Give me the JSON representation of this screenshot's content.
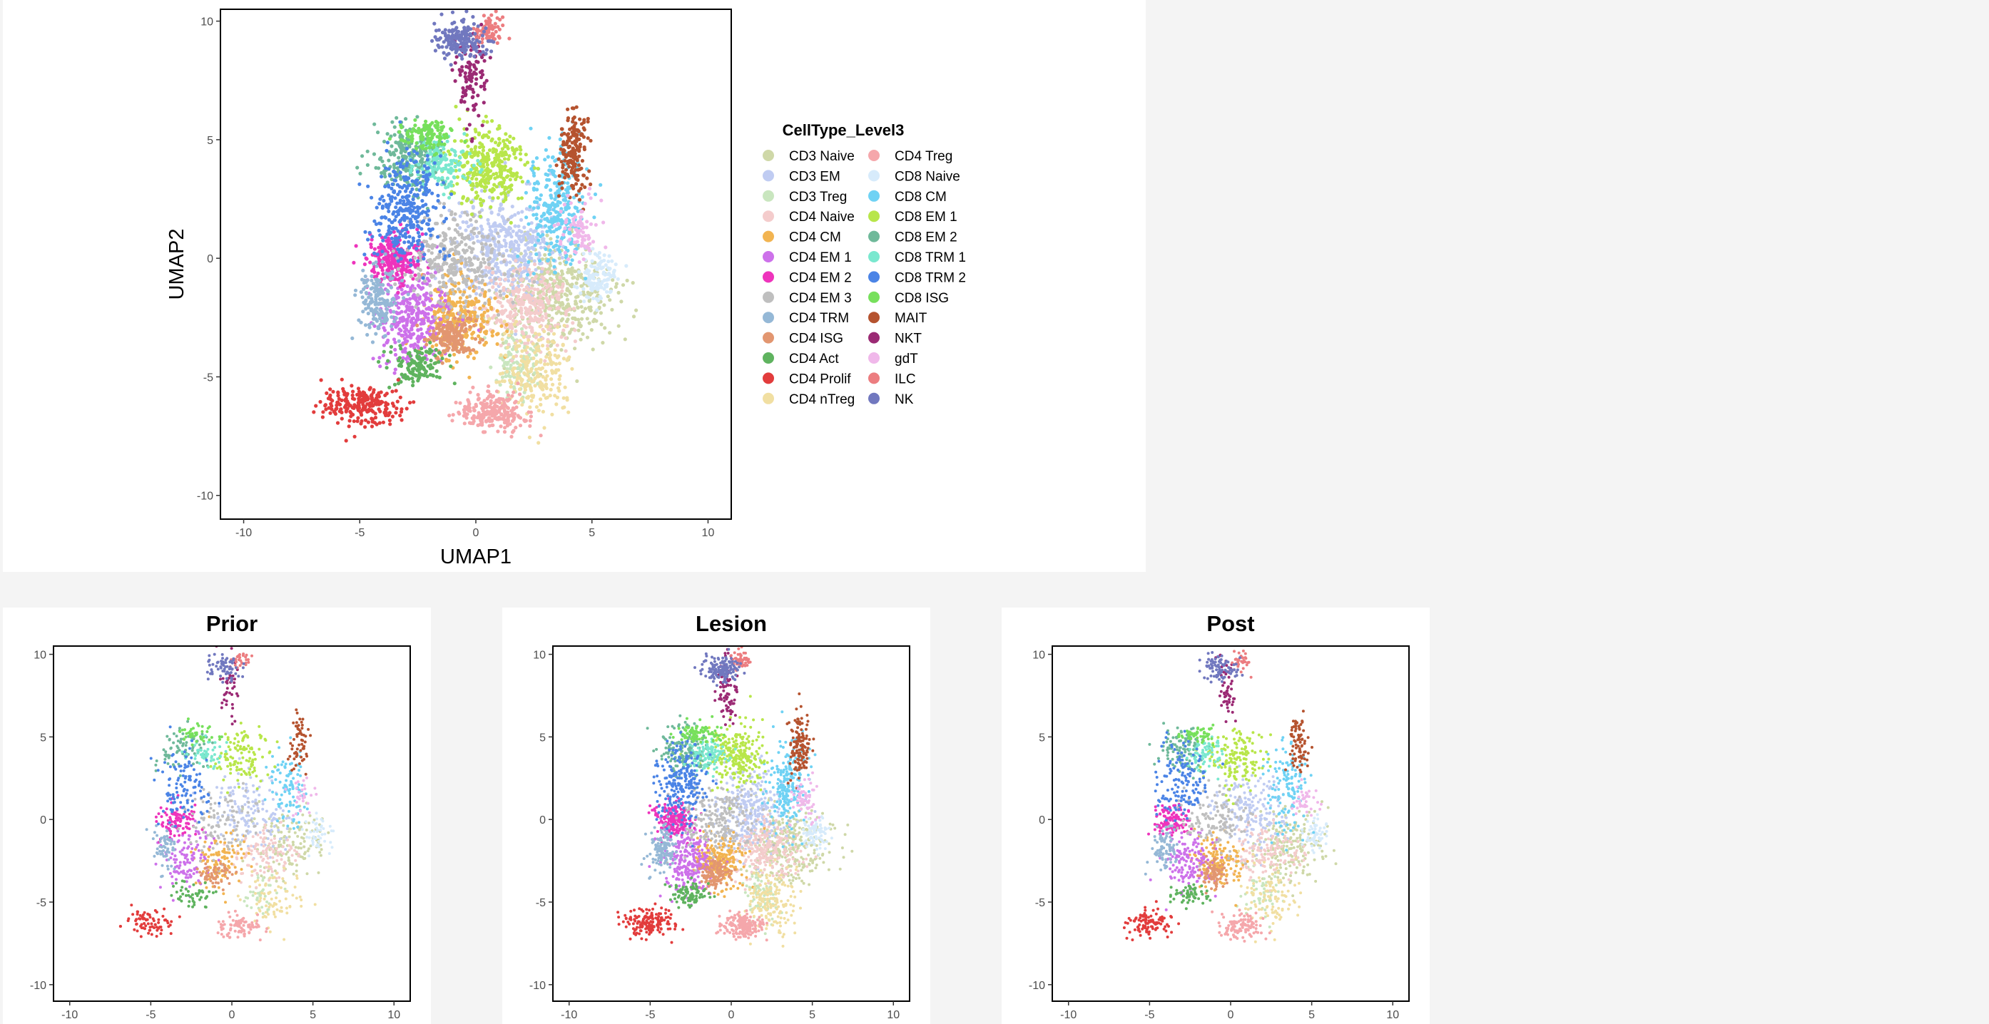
{
  "chart_data": [
    {
      "type": "scatter",
      "title": "",
      "xlabel": "UMAP1",
      "ylabel": "UMAP2",
      "xlim": [
        -11,
        11
      ],
      "ylim": [
        -11,
        10.5
      ],
      "xticks": [
        -10,
        -5,
        0,
        5,
        10
      ],
      "yticks": [
        -10,
        -5,
        0,
        5,
        10
      ],
      "grid": false,
      "legend_title": "CellType_Level3",
      "legend_position": "right",
      "density": 1.0,
      "series": [
        {
          "name": "CD3 Naive",
          "color": "#cfd8a8",
          "cx": 3.5,
          "cy": -1.5,
          "sx": 1.2,
          "sy": 1.1,
          "n": 420
        },
        {
          "name": "CD3 EM",
          "color": "#c0ccf2",
          "cx": 1.2,
          "cy": 0.5,
          "sx": 1.1,
          "sy": 1.2,
          "n": 420
        },
        {
          "name": "CD3 Treg",
          "color": "#c9e6bf",
          "cx": 1.8,
          "cy": -4.5,
          "sx": 0.5,
          "sy": 0.8,
          "n": 120
        },
        {
          "name": "CD4 Naive",
          "color": "#f4cccc",
          "cx": 2.2,
          "cy": -2.0,
          "sx": 1.0,
          "sy": 0.8,
          "n": 300
        },
        {
          "name": "CD4 CM",
          "color": "#f2b451",
          "cx": -0.8,
          "cy": -2.5,
          "sx": 0.8,
          "sy": 0.8,
          "n": 300
        },
        {
          "name": "CD4 EM 1",
          "color": "#cd71ea",
          "cx": -2.7,
          "cy": -2.5,
          "sx": 0.8,
          "sy": 0.9,
          "n": 330
        },
        {
          "name": "CD4 EM 2",
          "color": "#ee34bc",
          "cx": -3.5,
          "cy": 0.0,
          "sx": 0.6,
          "sy": 0.5,
          "n": 260
        },
        {
          "name": "CD4 EM 3",
          "color": "#bfbfbf",
          "cx": -0.8,
          "cy": 0.0,
          "sx": 1.1,
          "sy": 1.0,
          "n": 300
        },
        {
          "name": "CD4 TRM",
          "color": "#95b8d6",
          "cx": -4.2,
          "cy": -1.8,
          "sx": 0.4,
          "sy": 0.7,
          "n": 170
        },
        {
          "name": "CD4 ISG",
          "color": "#e29670",
          "cx": -1.0,
          "cy": -3.3,
          "sx": 0.5,
          "sy": 0.4,
          "n": 170
        },
        {
          "name": "CD4 Act",
          "color": "#5fb35f",
          "cx": -2.5,
          "cy": -4.5,
          "sx": 0.6,
          "sy": 0.4,
          "n": 130
        },
        {
          "name": "CD4 Prolif",
          "color": "#e23c3c",
          "cx": -5.0,
          "cy": -6.2,
          "sx": 0.8,
          "sy": 0.4,
          "n": 220
        },
        {
          "name": "CD4 nTreg",
          "color": "#f1dfa2",
          "cx": 2.5,
          "cy": -4.8,
          "sx": 0.8,
          "sy": 1.0,
          "n": 220
        },
        {
          "name": "CD4 Treg",
          "color": "#f5a7ab",
          "cx": 0.7,
          "cy": -6.5,
          "sx": 0.7,
          "sy": 0.4,
          "n": 240
        },
        {
          "name": "CD8 Naive",
          "color": "#d7ebfb",
          "cx": 5.2,
          "cy": -0.8,
          "sx": 0.4,
          "sy": 0.5,
          "n": 120
        },
        {
          "name": "CD8 CM",
          "color": "#6fd2f4",
          "cx": 3.5,
          "cy": 2.0,
          "sx": 0.6,
          "sy": 1.3,
          "n": 280
        },
        {
          "name": "CD8 EM 1",
          "color": "#b8e64a",
          "cx": 0.5,
          "cy": 3.8,
          "sx": 0.8,
          "sy": 0.9,
          "n": 330
        },
        {
          "name": "CD8 EM 2",
          "color": "#6fb99a",
          "cx": -3.0,
          "cy": 4.2,
          "sx": 0.7,
          "sy": 0.7,
          "n": 220
        },
        {
          "name": "CD8 TRM 1",
          "color": "#7ae8cf",
          "cx": -1.5,
          "cy": 4.0,
          "sx": 0.6,
          "sy": 0.5,
          "n": 150
        },
        {
          "name": "CD8 TRM 2",
          "color": "#4b84e6",
          "cx": -3.0,
          "cy": 2.2,
          "sx": 0.8,
          "sy": 1.2,
          "n": 320
        },
        {
          "name": "CD8 ISG",
          "color": "#77e05c",
          "cx": -2.0,
          "cy": 5.2,
          "sx": 0.6,
          "sy": 0.3,
          "n": 110
        },
        {
          "name": "MAIT",
          "color": "#b5532f",
          "cx": 4.2,
          "cy": 4.5,
          "sx": 0.3,
          "sy": 0.9,
          "n": 170
        },
        {
          "name": "NKT",
          "color": "#9b2a74",
          "cx": -0.2,
          "cy": 7.8,
          "sx": 0.3,
          "sy": 1.0,
          "n": 110
        },
        {
          "name": "gdT",
          "color": "#f0b8ea",
          "cx": 4.5,
          "cy": 1.2,
          "sx": 0.4,
          "sy": 0.6,
          "n": 80
        },
        {
          "name": "ILC",
          "color": "#ec7d80",
          "cx": 0.6,
          "cy": 9.6,
          "sx": 0.3,
          "sy": 0.3,
          "n": 70
        },
        {
          "name": "NK",
          "color": "#7178bf",
          "cx": -0.6,
          "cy": 9.2,
          "sx": 0.6,
          "sy": 0.4,
          "n": 180
        }
      ]
    },
    {
      "type": "scatter",
      "title": "Prior",
      "xlim": [
        -11,
        11
      ],
      "ylim": [
        -11,
        10.5
      ],
      "xticks": [
        -10,
        -5,
        0,
        5,
        10
      ],
      "yticks": [
        -10,
        -5,
        0,
        5,
        10
      ],
      "grid": false,
      "density": 0.35
    },
    {
      "type": "scatter",
      "title": "Lesion",
      "xlim": [
        -11,
        11
      ],
      "ylim": [
        -11,
        10.5
      ],
      "xticks": [
        -10,
        -5,
        0,
        5,
        10
      ],
      "yticks": [
        -10,
        -5,
        0,
        5,
        10
      ],
      "grid": false,
      "density": 0.75
    },
    {
      "type": "scatter",
      "title": "Post",
      "xlim": [
        -11,
        11
      ],
      "ylim": [
        -11,
        10.5
      ],
      "xticks": [
        -10,
        -5,
        0,
        5,
        10
      ],
      "yticks": [
        -10,
        -5,
        0,
        5,
        10
      ],
      "grid": false,
      "density": 0.45
    }
  ]
}
